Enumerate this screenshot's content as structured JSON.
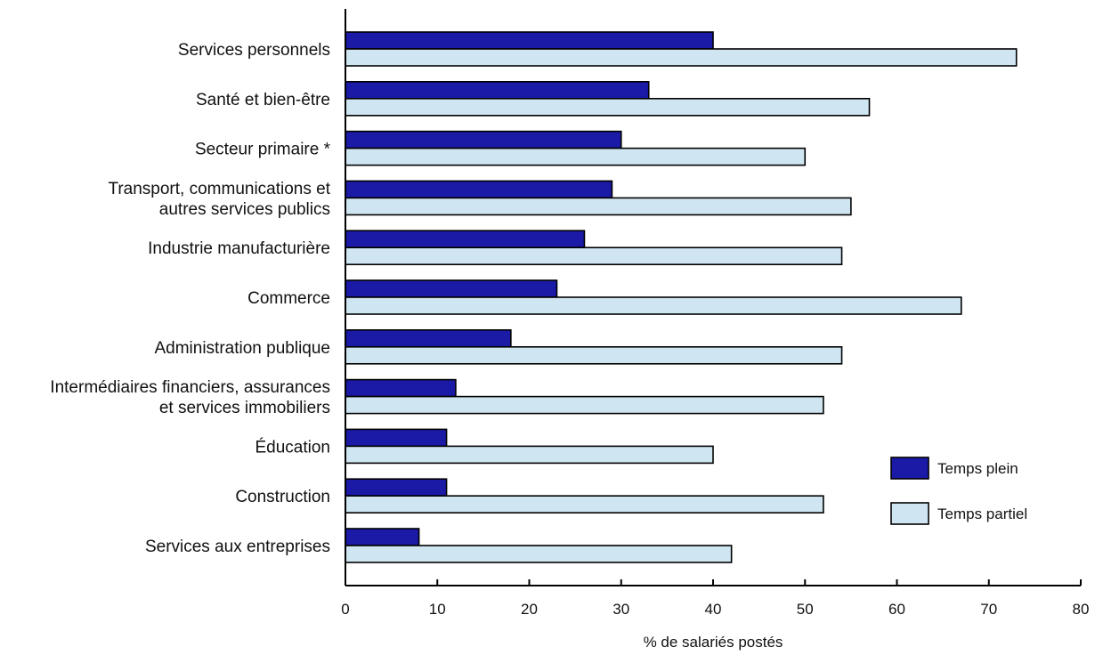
{
  "chart_data": {
    "type": "bar",
    "orientation": "horizontal",
    "title": "",
    "xlabel": "% de salariés postés",
    "ylabel": "",
    "xlim": [
      0,
      80
    ],
    "xticks": [
      0,
      10,
      20,
      30,
      40,
      50,
      60,
      70,
      80
    ],
    "grid": false,
    "legend_position": "right",
    "categories": [
      [
        "Services personnels"
      ],
      [
        "Santé et bien-être"
      ],
      [
        "Secteur primaire *"
      ],
      [
        "Transport, communications et",
        "autres services publics"
      ],
      [
        "Industrie manufacturière"
      ],
      [
        "Commerce"
      ],
      [
        "Administration publique"
      ],
      [
        "Intermédiaires financiers, assurances",
        "et services immobiliers"
      ],
      [
        "Éducation"
      ],
      [
        "Construction"
      ],
      [
        "Services aux entreprises"
      ]
    ],
    "series": [
      {
        "name": "Temps plein",
        "color": "#1a1aa6",
        "values": [
          40,
          33,
          30,
          29,
          26,
          23,
          18,
          12,
          11,
          11,
          8
        ]
      },
      {
        "name": "Temps partiel",
        "color": "#cfe6f2",
        "values": [
          73,
          57,
          50,
          55,
          54,
          67,
          54,
          52,
          40,
          52,
          42
        ]
      }
    ]
  }
}
